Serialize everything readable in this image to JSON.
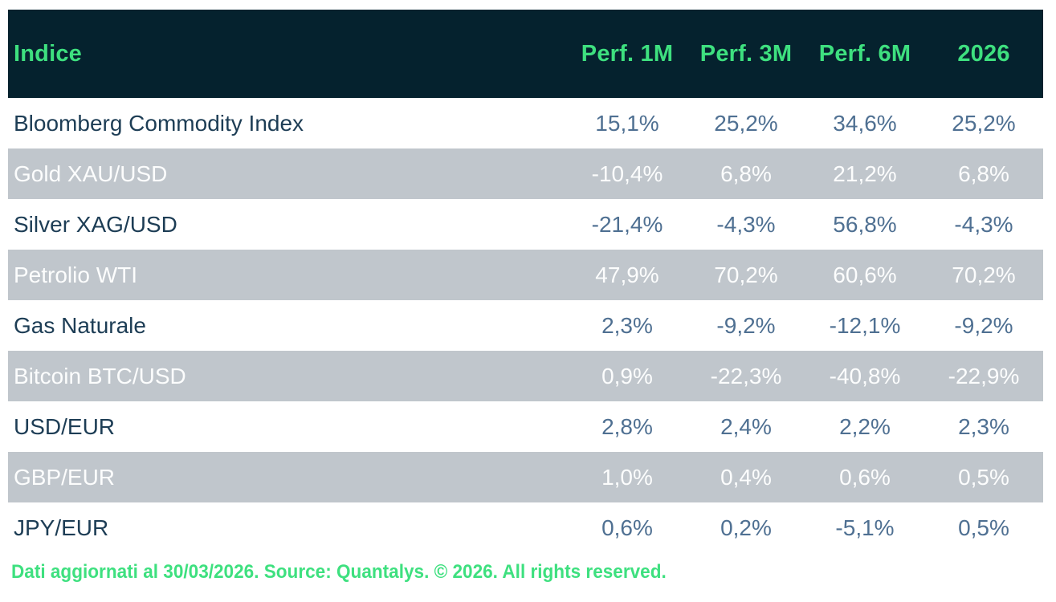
{
  "chart_data": {
    "type": "table",
    "columns": [
      "Indice",
      "Perf. 1M",
      "Perf. 3M",
      "Perf. 6M",
      "2026"
    ],
    "rows": [
      [
        "Bloomberg Commodity Index",
        "15,1%",
        "25,2%",
        "34,6%",
        "25,2%"
      ],
      [
        "Gold XAU/USD",
        "-10,4%",
        "6,8%",
        "21,2%",
        "6,8%"
      ],
      [
        "Silver XAG/USD",
        "-21,4%",
        "-4,3%",
        "56,8%",
        "-4,3%"
      ],
      [
        "Petrolio WTI",
        "47,9%",
        "70,2%",
        "60,6%",
        "70,2%"
      ],
      [
        "Gas Naturale",
        "2,3%",
        "-9,2%",
        "-12,1%",
        "-9,2%"
      ],
      [
        "Bitcoin BTC/USD",
        "0,9%",
        "-22,3%",
        "-40,8%",
        "-22,9%"
      ],
      [
        "USD/EUR",
        "2,8%",
        "2,4%",
        "2,2%",
        "2,3%"
      ],
      [
        "GBP/EUR",
        "1,0%",
        "0,4%",
        "0,6%",
        "0,5%"
      ],
      [
        "JPY/EUR",
        "0,6%",
        "0,2%",
        "-5,1%",
        "0,5%"
      ]
    ],
    "layout": {
      "striped": true,
      "header_position": "top",
      "numeric_alignment": "center"
    }
  },
  "footer": {
    "text": "Dati aggiornati al 30/03/2026. Source: Quantalys. © 2026. All rights reserved."
  },
  "colors": {
    "header_background": "#05222E",
    "accent_green": "#3EE07F",
    "row_alt_background": "#C0C6CC",
    "row_background": "#FFFFFF",
    "label_text": "#1D3D55",
    "value_text": "#4F7092",
    "alt_row_text": "#FCFDFD"
  }
}
